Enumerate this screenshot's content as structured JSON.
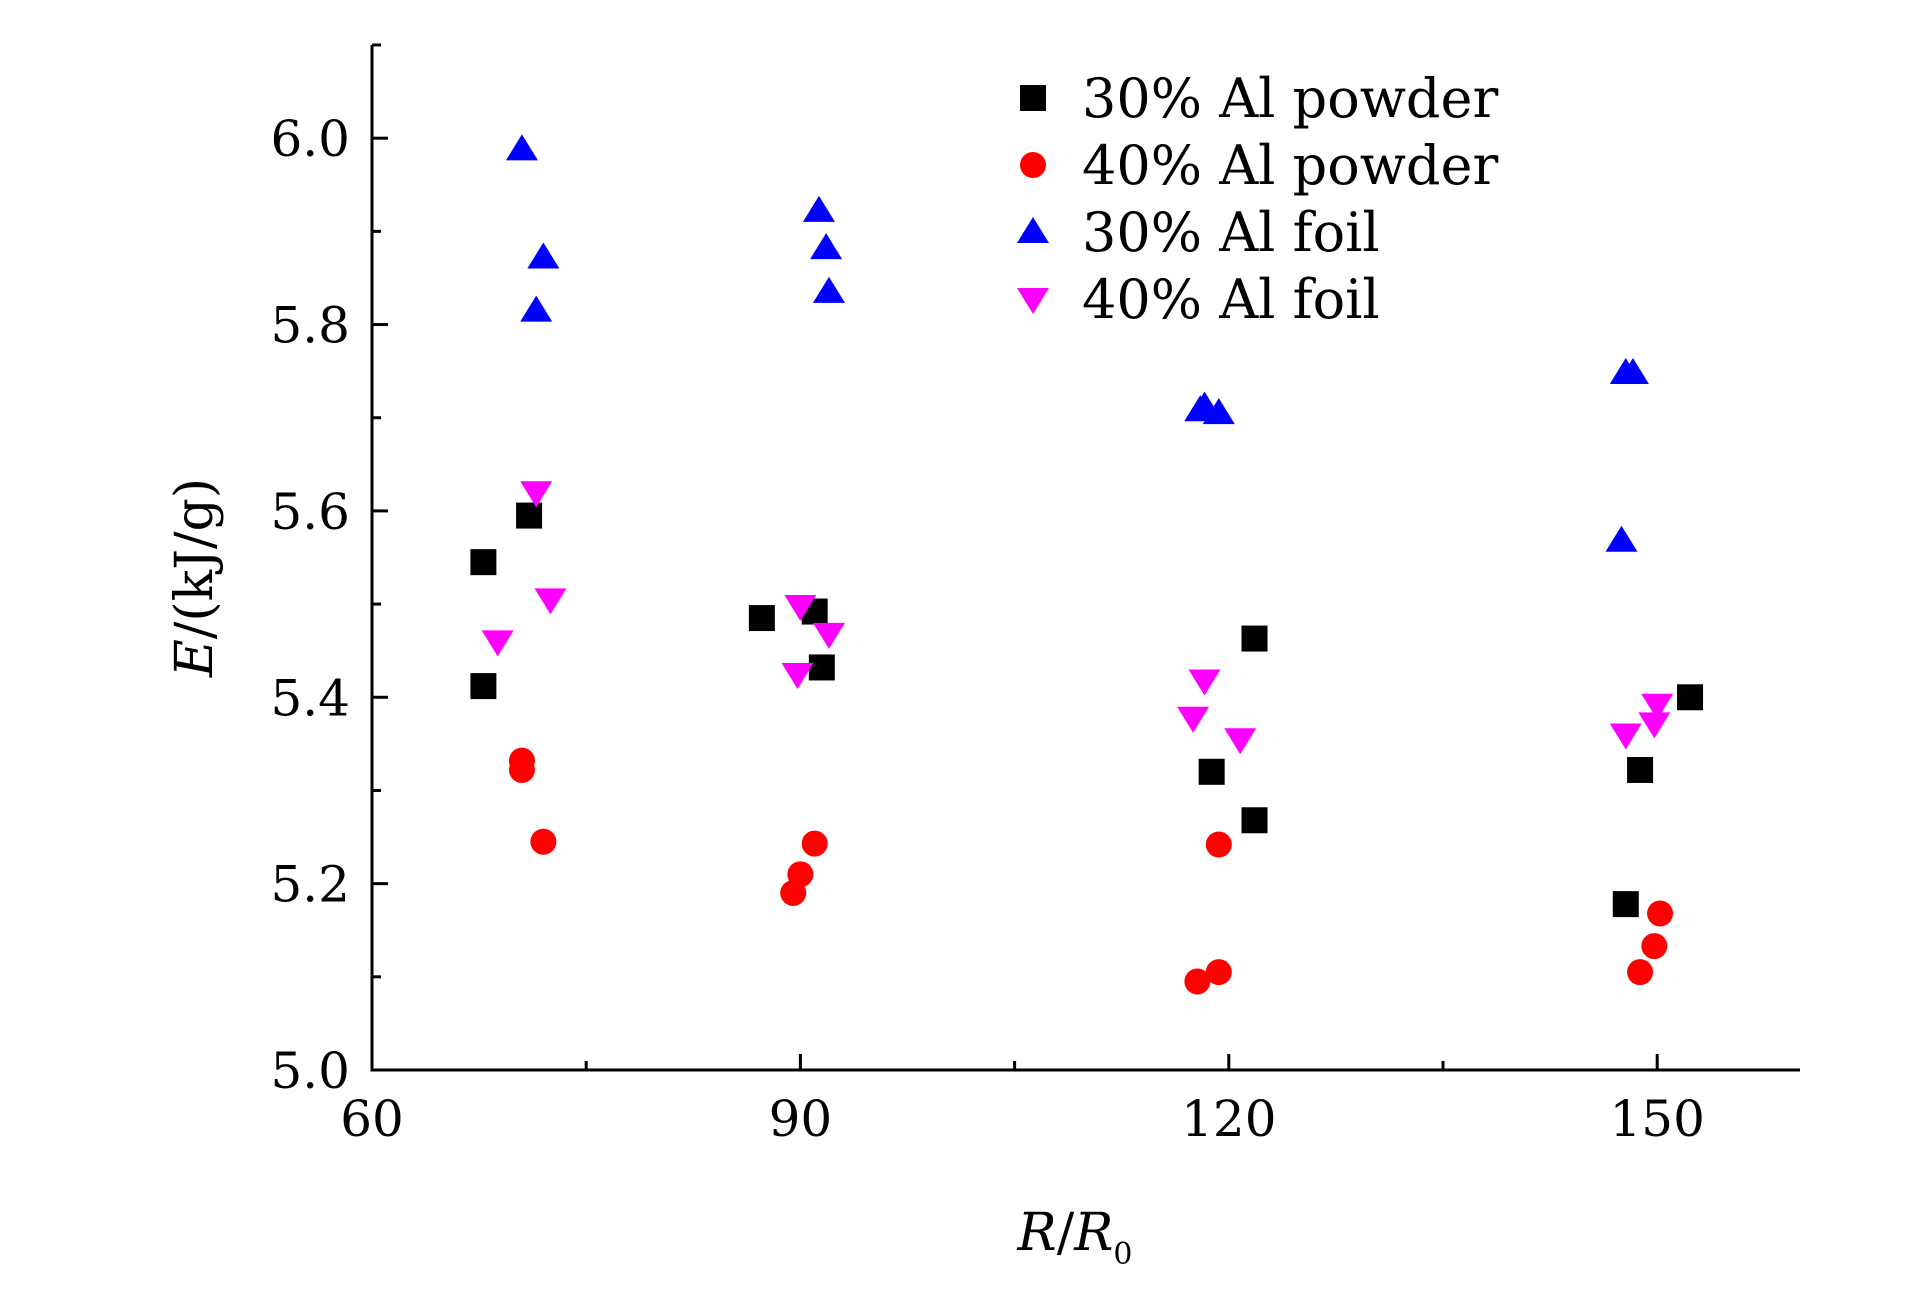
{
  "chart_data": {
    "type": "scatter",
    "title": "",
    "xlabel": {
      "italic": "R",
      "slash": "/",
      "italic2": "R",
      "sub": "0"
    },
    "ylabel": {
      "italic": "E",
      "rest": "/(kJ/g)"
    },
    "xlim": [
      60,
      160
    ],
    "ylim": [
      5.0,
      6.1
    ],
    "xticks": [
      60,
      90,
      120,
      150
    ],
    "xtick_labels": [
      "60",
      "90",
      "120",
      "150"
    ],
    "yticks": [
      5.0,
      5.2,
      5.4,
      5.6,
      5.8,
      6.0
    ],
    "ytick_labels": [
      "5.0",
      "5.2",
      "5.4",
      "5.6",
      "5.8",
      "6.0"
    ],
    "grid": false,
    "legend_position": "top-right",
    "series": [
      {
        "name": "30% Al powder",
        "marker": "square",
        "color": "#000000",
        "points": [
          [
            67.8,
            5.545
          ],
          [
            71.0,
            5.595
          ],
          [
            67.8,
            5.412
          ],
          [
            87.3,
            5.485
          ],
          [
            91.0,
            5.492
          ],
          [
            91.5,
            5.432
          ],
          [
            118.8,
            5.32
          ],
          [
            121.8,
            5.463
          ],
          [
            121.8,
            5.268
          ],
          [
            148.8,
            5.322
          ],
          [
            152.3,
            5.4
          ],
          [
            147.8,
            5.178
          ]
        ]
      },
      {
        "name": "40% Al powder",
        "marker": "circle",
        "color": "#ff0000",
        "points": [
          [
            70.5,
            5.332
          ],
          [
            70.5,
            5.322
          ],
          [
            72.0,
            5.245
          ],
          [
            89.5,
            5.19
          ],
          [
            90.0,
            5.21
          ],
          [
            91.0,
            5.243
          ],
          [
            117.8,
            5.095
          ],
          [
            119.3,
            5.105
          ],
          [
            119.3,
            5.242
          ],
          [
            148.8,
            5.105
          ],
          [
            149.8,
            5.133
          ],
          [
            150.2,
            5.168
          ]
        ]
      },
      {
        "name": "30% Al foil",
        "marker": "triangle-up",
        "color": "#0000ff",
        "points": [
          [
            70.5,
            5.988
          ],
          [
            72.0,
            5.872
          ],
          [
            71.5,
            5.815
          ],
          [
            91.3,
            5.922
          ],
          [
            91.8,
            5.882
          ],
          [
            92.0,
            5.835
          ],
          [
            118.3,
            5.712
          ],
          [
            118.0,
            5.708
          ],
          [
            119.3,
            5.705
          ],
          [
            147.8,
            5.748
          ],
          [
            148.3,
            5.748
          ],
          [
            147.5,
            5.568
          ]
        ]
      },
      {
        "name": "40% Al foil",
        "marker": "triangle-down",
        "color": "#ff00ff",
        "points": [
          [
            71.5,
            5.62
          ],
          [
            72.5,
            5.505
          ],
          [
            68.8,
            5.46
          ],
          [
            90.0,
            5.498
          ],
          [
            92.0,
            5.468
          ],
          [
            89.8,
            5.425
          ],
          [
            118.3,
            5.418
          ],
          [
            117.5,
            5.378
          ],
          [
            120.8,
            5.355
          ],
          [
            150.0,
            5.392
          ],
          [
            149.8,
            5.372
          ],
          [
            147.8,
            5.36
          ]
        ]
      }
    ]
  }
}
